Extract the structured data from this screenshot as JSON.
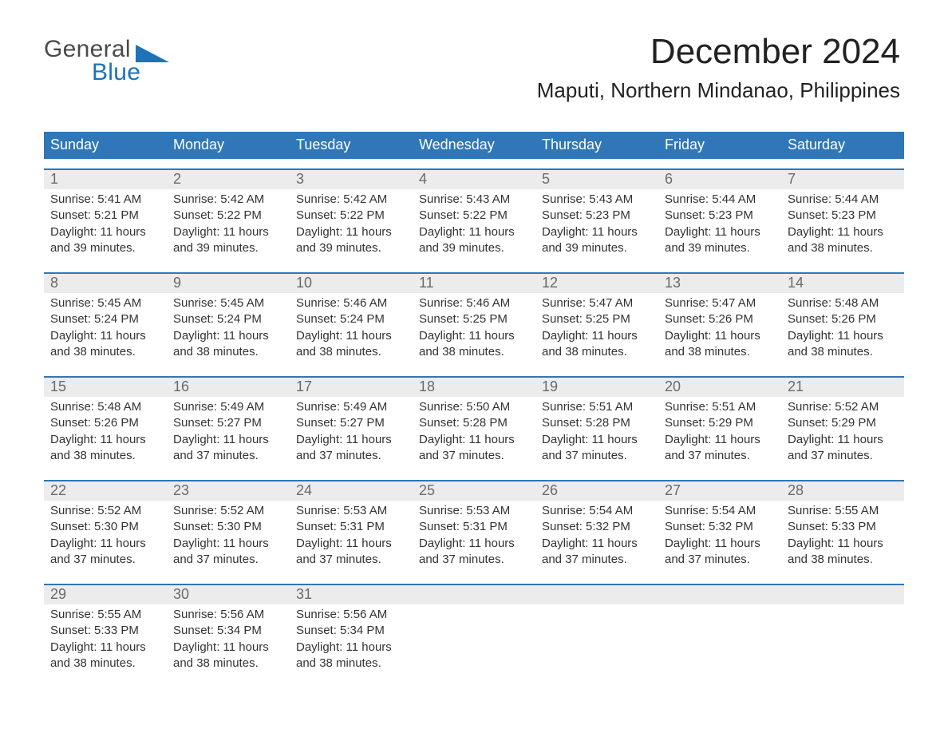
{
  "logo": {
    "word1": "General",
    "word2": "Blue",
    "word1_color": "#4a4a4a",
    "word2_color": "#1e72b8"
  },
  "header": {
    "title": "December 2024",
    "location": "Maputi, Northern Mindanao, Philippines",
    "title_fontsize": 44,
    "location_fontsize": 26
  },
  "colors": {
    "header_blue": "#2f77b8",
    "week_border": "#1f5a95",
    "daynum_bg": "#ececec",
    "daynum_text": "#6a6a6a",
    "page_bg": "#ffffff",
    "text": "#333333"
  },
  "calendar": {
    "weekdays": [
      "Sunday",
      "Monday",
      "Tuesday",
      "Wednesday",
      "Thursday",
      "Friday",
      "Saturday"
    ],
    "labels": {
      "sunrise": "Sunrise",
      "sunset": "Sunset",
      "daylight": "Daylight"
    },
    "weeks": [
      {
        "days": [
          {
            "num": 1,
            "sunrise": "5:41 AM",
            "sunset": "5:21 PM",
            "daylight_h": 11,
            "daylight_m": 39
          },
          {
            "num": 2,
            "sunrise": "5:42 AM",
            "sunset": "5:22 PM",
            "daylight_h": 11,
            "daylight_m": 39
          },
          {
            "num": 3,
            "sunrise": "5:42 AM",
            "sunset": "5:22 PM",
            "daylight_h": 11,
            "daylight_m": 39
          },
          {
            "num": 4,
            "sunrise": "5:43 AM",
            "sunset": "5:22 PM",
            "daylight_h": 11,
            "daylight_m": 39
          },
          {
            "num": 5,
            "sunrise": "5:43 AM",
            "sunset": "5:23 PM",
            "daylight_h": 11,
            "daylight_m": 39
          },
          {
            "num": 6,
            "sunrise": "5:44 AM",
            "sunset": "5:23 PM",
            "daylight_h": 11,
            "daylight_m": 39
          },
          {
            "num": 7,
            "sunrise": "5:44 AM",
            "sunset": "5:23 PM",
            "daylight_h": 11,
            "daylight_m": 38
          }
        ]
      },
      {
        "days": [
          {
            "num": 8,
            "sunrise": "5:45 AM",
            "sunset": "5:24 PM",
            "daylight_h": 11,
            "daylight_m": 38
          },
          {
            "num": 9,
            "sunrise": "5:45 AM",
            "sunset": "5:24 PM",
            "daylight_h": 11,
            "daylight_m": 38
          },
          {
            "num": 10,
            "sunrise": "5:46 AM",
            "sunset": "5:24 PM",
            "daylight_h": 11,
            "daylight_m": 38
          },
          {
            "num": 11,
            "sunrise": "5:46 AM",
            "sunset": "5:25 PM",
            "daylight_h": 11,
            "daylight_m": 38
          },
          {
            "num": 12,
            "sunrise": "5:47 AM",
            "sunset": "5:25 PM",
            "daylight_h": 11,
            "daylight_m": 38
          },
          {
            "num": 13,
            "sunrise": "5:47 AM",
            "sunset": "5:26 PM",
            "daylight_h": 11,
            "daylight_m": 38
          },
          {
            "num": 14,
            "sunrise": "5:48 AM",
            "sunset": "5:26 PM",
            "daylight_h": 11,
            "daylight_m": 38
          }
        ]
      },
      {
        "days": [
          {
            "num": 15,
            "sunrise": "5:48 AM",
            "sunset": "5:26 PM",
            "daylight_h": 11,
            "daylight_m": 38
          },
          {
            "num": 16,
            "sunrise": "5:49 AM",
            "sunset": "5:27 PM",
            "daylight_h": 11,
            "daylight_m": 37
          },
          {
            "num": 17,
            "sunrise": "5:49 AM",
            "sunset": "5:27 PM",
            "daylight_h": 11,
            "daylight_m": 37
          },
          {
            "num": 18,
            "sunrise": "5:50 AM",
            "sunset": "5:28 PM",
            "daylight_h": 11,
            "daylight_m": 37
          },
          {
            "num": 19,
            "sunrise": "5:51 AM",
            "sunset": "5:28 PM",
            "daylight_h": 11,
            "daylight_m": 37
          },
          {
            "num": 20,
            "sunrise": "5:51 AM",
            "sunset": "5:29 PM",
            "daylight_h": 11,
            "daylight_m": 37
          },
          {
            "num": 21,
            "sunrise": "5:52 AM",
            "sunset": "5:29 PM",
            "daylight_h": 11,
            "daylight_m": 37
          }
        ]
      },
      {
        "days": [
          {
            "num": 22,
            "sunrise": "5:52 AM",
            "sunset": "5:30 PM",
            "daylight_h": 11,
            "daylight_m": 37
          },
          {
            "num": 23,
            "sunrise": "5:52 AM",
            "sunset": "5:30 PM",
            "daylight_h": 11,
            "daylight_m": 37
          },
          {
            "num": 24,
            "sunrise": "5:53 AM",
            "sunset": "5:31 PM",
            "daylight_h": 11,
            "daylight_m": 37
          },
          {
            "num": 25,
            "sunrise": "5:53 AM",
            "sunset": "5:31 PM",
            "daylight_h": 11,
            "daylight_m": 37
          },
          {
            "num": 26,
            "sunrise": "5:54 AM",
            "sunset": "5:32 PM",
            "daylight_h": 11,
            "daylight_m": 37
          },
          {
            "num": 27,
            "sunrise": "5:54 AM",
            "sunset": "5:32 PM",
            "daylight_h": 11,
            "daylight_m": 37
          },
          {
            "num": 28,
            "sunrise": "5:55 AM",
            "sunset": "5:33 PM",
            "daylight_h": 11,
            "daylight_m": 38
          }
        ]
      },
      {
        "days": [
          {
            "num": 29,
            "sunrise": "5:55 AM",
            "sunset": "5:33 PM",
            "daylight_h": 11,
            "daylight_m": 38
          },
          {
            "num": 30,
            "sunrise": "5:56 AM",
            "sunset": "5:34 PM",
            "daylight_h": 11,
            "daylight_m": 38
          },
          {
            "num": 31,
            "sunrise": "5:56 AM",
            "sunset": "5:34 PM",
            "daylight_h": 11,
            "daylight_m": 38
          },
          null,
          null,
          null,
          null
        ]
      }
    ]
  }
}
